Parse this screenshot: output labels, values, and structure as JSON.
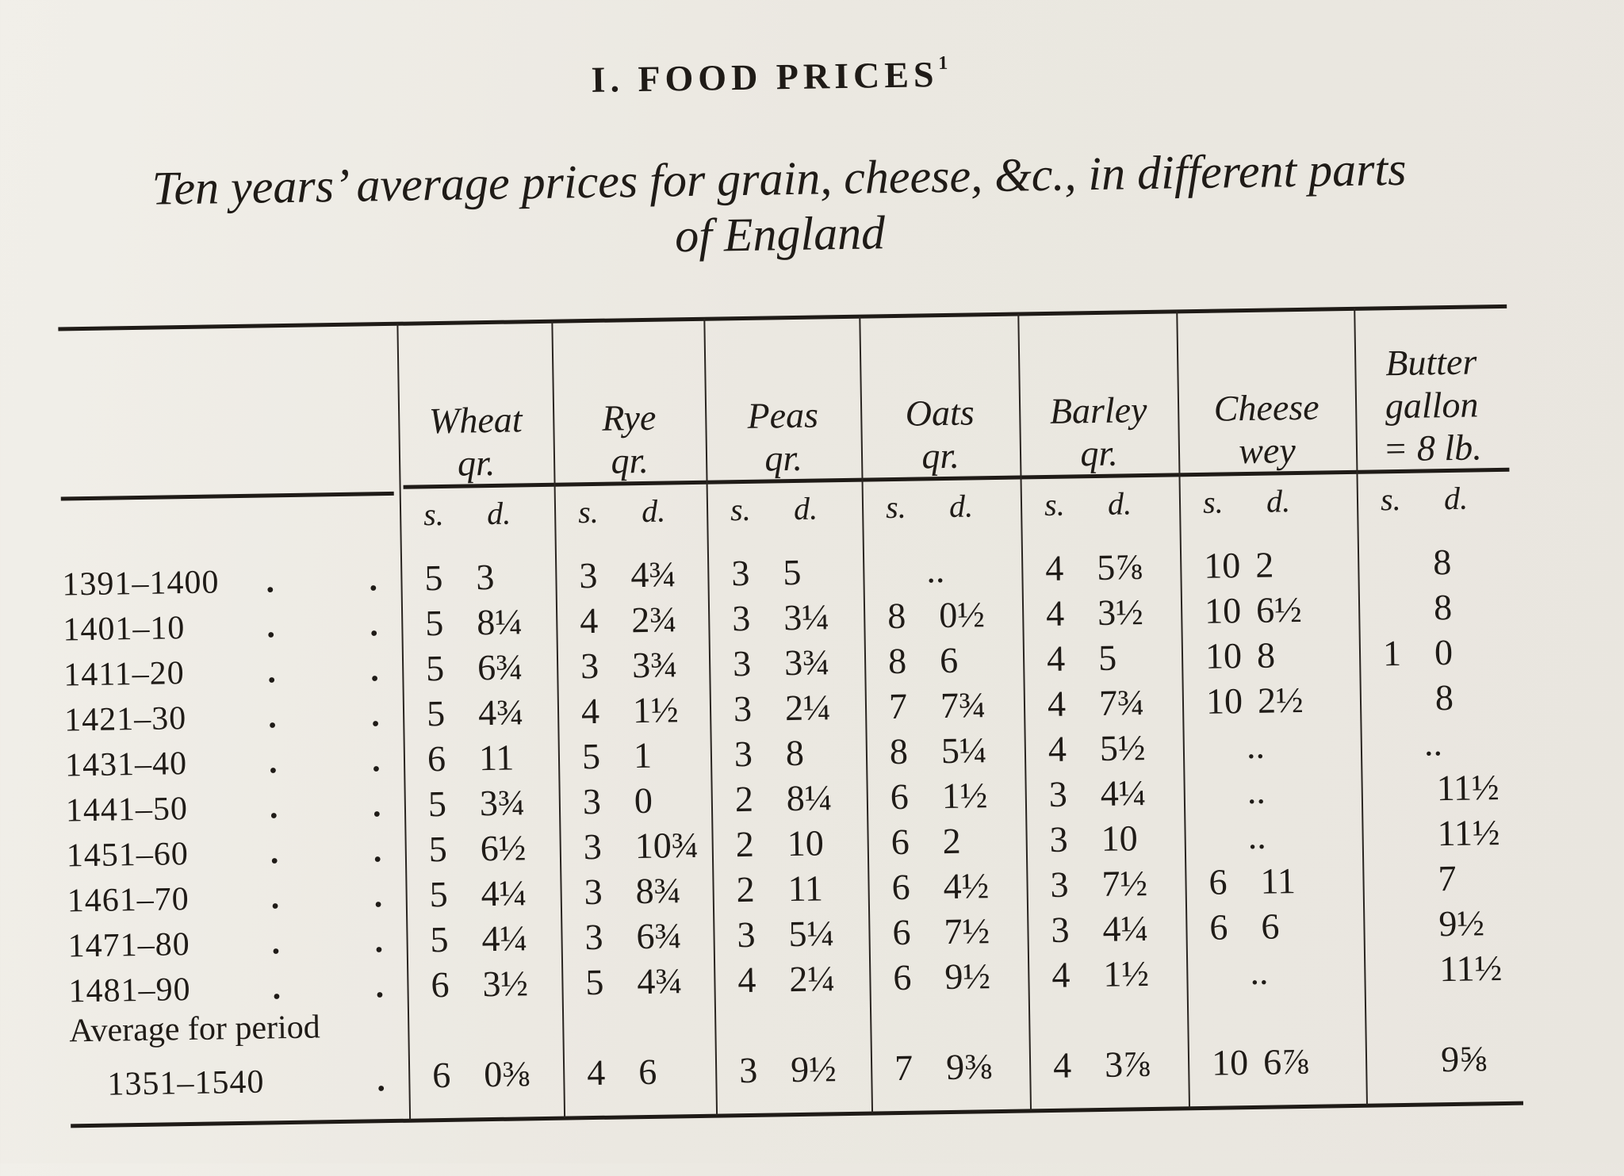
{
  "title": "I. FOOD PRICES",
  "title_footnote": "1",
  "subtitle_line1": "Ten years’ average prices for grain, cheese, &c., in different parts",
  "subtitle_line2": "of England",
  "columns": [
    {
      "name": "Wheat",
      "unit": "qr."
    },
    {
      "name": "Rye",
      "unit": "qr."
    },
    {
      "name": "Peas",
      "unit": "qr."
    },
    {
      "name": "Oats",
      "unit": "qr."
    },
    {
      "name": "Barley",
      "unit": "qr."
    },
    {
      "name": "Cheese",
      "unit": "wey"
    },
    {
      "name": "Butter",
      "unit": "gallon",
      "unit2": "= 8 lb."
    }
  ],
  "subheader": {
    "s": "s.",
    "d": "d."
  },
  "rows": [
    {
      "period": "1391–1400",
      "values": [
        [
          "5",
          "3"
        ],
        [
          "3",
          "4¾"
        ],
        [
          "3",
          "5"
        ],
        [
          "",
          ".."
        ],
        [
          "4",
          "5⅞"
        ],
        [
          "10",
          "2"
        ],
        [
          "",
          "8"
        ]
      ]
    },
    {
      "period": "1401–10",
      "values": [
        [
          "5",
          "8¼"
        ],
        [
          "4",
          "2¾"
        ],
        [
          "3",
          "3¼"
        ],
        [
          "8",
          "0½"
        ],
        [
          "4",
          "3½"
        ],
        [
          "10",
          "6½"
        ],
        [
          "",
          "8"
        ]
      ]
    },
    {
      "period": "1411–20",
      "values": [
        [
          "5",
          "6¾"
        ],
        [
          "3",
          "3¾"
        ],
        [
          "3",
          "3¾"
        ],
        [
          "8",
          "6"
        ],
        [
          "4",
          "5"
        ],
        [
          "10",
          "8"
        ],
        [
          "1",
          "0"
        ]
      ]
    },
    {
      "period": "1421–30",
      "values": [
        [
          "5",
          "4¾"
        ],
        [
          "4",
          "1½"
        ],
        [
          "3",
          "2¼"
        ],
        [
          "7",
          "7¾"
        ],
        [
          "4",
          "7¾"
        ],
        [
          "10",
          "2½"
        ],
        [
          "",
          "8"
        ]
      ]
    },
    {
      "period": "1431–40",
      "values": [
        [
          "6",
          "11"
        ],
        [
          "5",
          "1"
        ],
        [
          "3",
          "8"
        ],
        [
          "8",
          "5¼"
        ],
        [
          "4",
          "5½"
        ],
        [
          "",
          ".."
        ],
        [
          "",
          ".."
        ]
      ]
    },
    {
      "period": "1441–50",
      "values": [
        [
          "5",
          "3¾"
        ],
        [
          "3",
          "0"
        ],
        [
          "2",
          "8¼"
        ],
        [
          "6",
          "1½"
        ],
        [
          "3",
          "4¼"
        ],
        [
          "",
          ".."
        ],
        [
          "",
          "11½"
        ]
      ]
    },
    {
      "period": "1451–60",
      "values": [
        [
          "5",
          "6½"
        ],
        [
          "3",
          "10¾"
        ],
        [
          "2",
          "10"
        ],
        [
          "6",
          "2"
        ],
        [
          "3",
          "10"
        ],
        [
          "",
          ".."
        ],
        [
          "",
          "11½"
        ]
      ]
    },
    {
      "period": "1461–70",
      "values": [
        [
          "5",
          "4¼"
        ],
        [
          "3",
          "8¾"
        ],
        [
          "2",
          "11"
        ],
        [
          "6",
          "4½"
        ],
        [
          "3",
          "7½"
        ],
        [
          "6",
          "11"
        ],
        [
          "",
          "7"
        ]
      ]
    },
    {
      "period": "1471–80",
      "values": [
        [
          "5",
          "4¼"
        ],
        [
          "3",
          "6¾"
        ],
        [
          "3",
          "5¼"
        ],
        [
          "6",
          "7½"
        ],
        [
          "3",
          "4¼"
        ],
        [
          "6",
          "6"
        ],
        [
          "",
          "9½"
        ]
      ]
    },
    {
      "period": "1481–90",
      "values": [
        [
          "6",
          "3½"
        ],
        [
          "5",
          "4¾"
        ],
        [
          "4",
          "2¼"
        ],
        [
          "6",
          "9½"
        ],
        [
          "4",
          "1½"
        ],
        [
          "",
          ".."
        ],
        [
          "",
          "11½"
        ]
      ]
    }
  ],
  "average": {
    "label": "Average for period",
    "period": "1351–1540",
    "values": [
      [
        "6",
        "0⅜"
      ],
      [
        "4",
        "6"
      ],
      [
        "3",
        "9½"
      ],
      [
        "7",
        "9⅜"
      ],
      [
        "4",
        "3⅞"
      ],
      [
        "10",
        "6⅞"
      ],
      [
        "",
        "9⅝"
      ]
    ]
  }
}
